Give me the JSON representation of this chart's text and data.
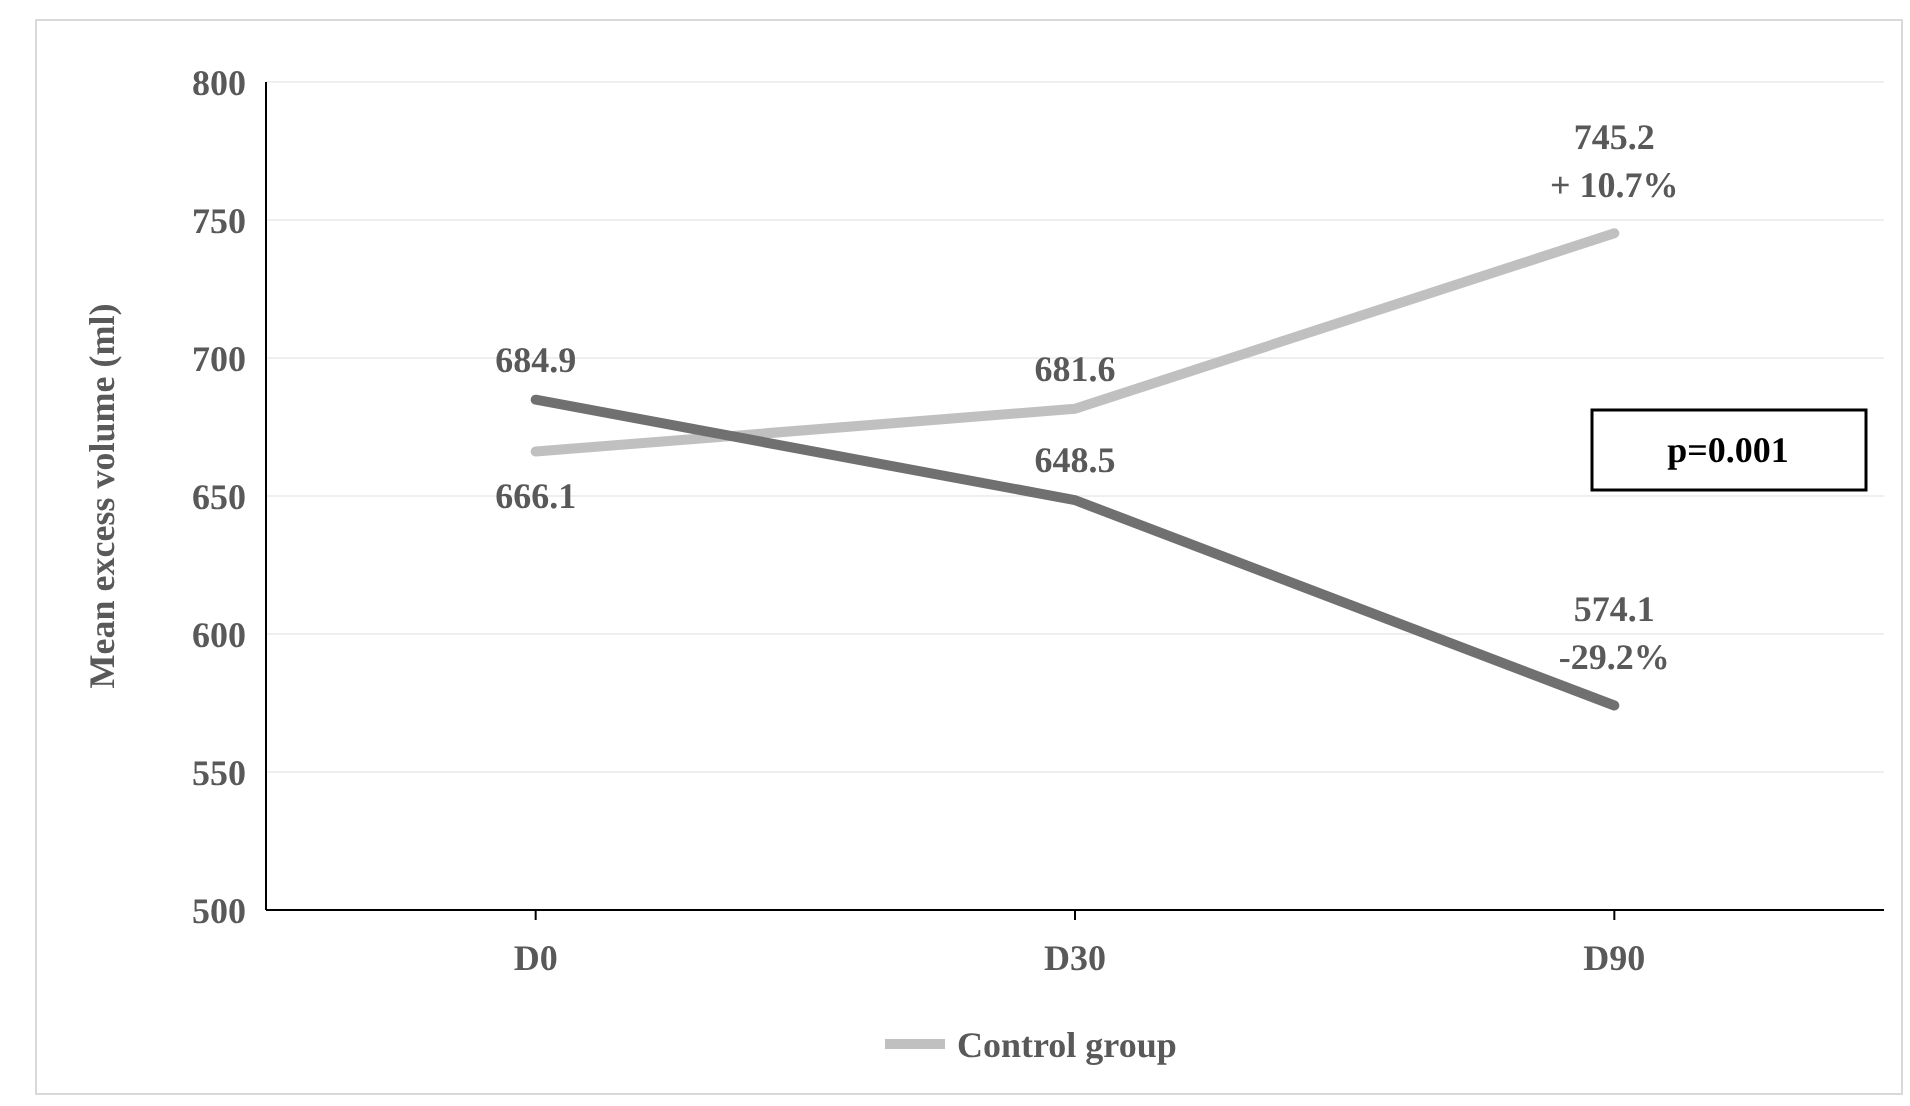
{
  "chart_data": {
    "type": "line",
    "ylabel": "Mean excess volume (ml)",
    "categories": [
      "D0",
      "D30",
      "D90"
    ],
    "series": [
      {
        "name": "Control group",
        "color": "#c0c0c0",
        "values": [
          666.1,
          681.6,
          745.2
        ],
        "value_labels": [
          "666.1",
          "681.6",
          "745.2"
        ]
      },
      {
        "color": "#707070",
        "values": [
          684.9,
          648.5,
          574.1
        ],
        "value_labels": [
          "684.9",
          "648.5",
          "574.1"
        ]
      }
    ],
    "ylim": [
      500,
      800
    ],
    "yticks": [
      500,
      550,
      600,
      650,
      700,
      750,
      800
    ],
    "grid": "y",
    "legend": "bottom",
    "marker": "none",
    "line_style": "solid",
    "annotations": [
      {
        "text": "+ 10.7%",
        "x": "D90",
        "y": 745.2
      },
      {
        "text": "-29.2%",
        "x": "D90",
        "y": 574.1
      },
      "p=0.001"
    ]
  }
}
